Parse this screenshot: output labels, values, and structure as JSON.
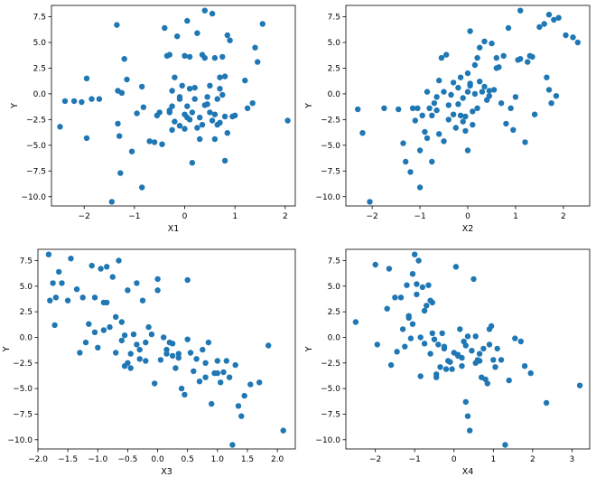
{
  "colors": {
    "marker": "#1f77b4"
  },
  "chart_data": [
    {
      "type": "scatter",
      "title": "",
      "xlabel": "X1",
      "ylabel": "Y",
      "xlim": [
        -2.65,
        2.2
      ],
      "ylim": [
        -10.9,
        8.6
      ],
      "xticks": [
        -2,
        -1,
        0,
        1,
        2
      ],
      "xtick_labels": [
        "−2",
        "−1",
        "0",
        "1",
        "2"
      ],
      "yticks": [
        -10,
        -7.5,
        -5,
        -2.5,
        0,
        2.5,
        5,
        7.5
      ],
      "ytick_labels": [
        "−10.0",
        "−7.5",
        "−5.0",
        "−2.5",
        "0.0",
        "2.5",
        "5.0",
        "7.5"
      ],
      "grid": false,
      "x": [
        -2.48,
        -2.38,
        -2.2,
        -2.05,
        -1.95,
        -1.95,
        -1.85,
        -1.7,
        -1.45,
        -1.35,
        -1.33,
        -1.33,
        -1.3,
        -1.28,
        -1.25,
        -1.2,
        -1.15,
        -1.05,
        -0.95,
        -0.85,
        -0.85,
        -0.82,
        -0.7,
        -0.6,
        -0.5,
        -0.45,
        -0.4,
        -0.35,
        -0.3,
        -0.3,
        -0.25,
        -0.25,
        -0.25,
        -0.2,
        -0.2,
        -0.15,
        -0.1,
        -0.1,
        -0.05,
        0.0,
        0.0,
        0.0,
        0.05,
        0.05,
        0.1,
        0.1,
        0.1,
        0.15,
        0.15,
        0.2,
        0.2,
        0.25,
        0.3,
        0.3,
        0.35,
        0.35,
        0.4,
        0.4,
        0.4,
        0.45,
        0.5,
        0.5,
        0.55,
        0.55,
        0.6,
        0.6,
        0.6,
        0.65,
        0.65,
        0.7,
        0.7,
        0.7,
        0.75,
        0.75,
        0.8,
        0.8,
        0.8,
        0.85,
        0.85,
        0.9,
        0.95,
        1.0,
        1.2,
        1.25,
        1.35,
        1.4,
        1.45,
        1.55,
        2.05,
        -0.55,
        -0.3,
        0.05,
        0.25,
        -0.1,
        0.45
      ],
      "y": [
        -3.2,
        -0.7,
        -0.7,
        -0.8,
        -4.3,
        1.5,
        -0.5,
        -0.5,
        -10.5,
        6.7,
        0.3,
        -2.9,
        -4.1,
        -7.7,
        0.1,
        3.4,
        1.4,
        -5.6,
        -1.9,
        0.7,
        -9.1,
        -1.3,
        -4.6,
        -4.7,
        -1.8,
        -4.9,
        6.4,
        3.7,
        3.8,
        -1.6,
        -3.5,
        -1.2,
        0.3,
        -2.7,
        1.6,
        5.6,
        -0.5,
        -3.1,
        0.8,
        3.7,
        -2.0,
        -3.4,
        7.1,
        -1.2,
        -2.5,
        3.6,
        0.5,
        -6.7,
        -1.8,
        -0.5,
        0.6,
        5.9,
        -4.4,
        -2.3,
        3.8,
        -3.0,
        -1.1,
        3.5,
        8.1,
        -0.3,
        0.8,
        -1.8,
        -2.6,
        7.8,
        -4.4,
        -2.0,
        3.5,
        -0.5,
        -3.0,
        1.6,
        0.5,
        -2.8,
        3.6,
        -0.1,
        -6.5,
        -2.2,
        1.7,
        -3.8,
        5.7,
        5.2,
        -2.2,
        -2.1,
        1.3,
        -1.4,
        -0.9,
        4.5,
        3.1,
        6.8,
        -2.6,
        -2.1,
        -1.8,
        -2.3,
        -3.3,
        -0.3,
        -1.0
      ]
    },
    {
      "type": "scatter",
      "title": "",
      "xlabel": "X2",
      "ylabel": "Y",
      "xlim": [
        -2.55,
        2.55
      ],
      "ylim": [
        -10.9,
        8.6
      ],
      "xticks": [
        -2,
        -1,
        0,
        1,
        2
      ],
      "xtick_labels": [
        "−2",
        "−1",
        "0",
        "1",
        "2"
      ],
      "yticks": [
        -10,
        -7.5,
        -5,
        -2.5,
        0,
        2.5,
        5,
        7.5
      ],
      "ytick_labels": [
        "−10.0",
        "−7.5",
        "−5.0",
        "−2.5",
        "0.0",
        "2.5",
        "5.0",
        "7.5"
      ],
      "grid": false,
      "x": [
        -2.3,
        -2.2,
        -2.05,
        -1.75,
        -1.45,
        -1.35,
        -1.3,
        -1.2,
        -1.15,
        -1.1,
        -1.05,
        -1.0,
        -1.0,
        -0.95,
        -0.9,
        -0.85,
        -0.85,
        -0.8,
        -0.75,
        -0.75,
        -0.7,
        -0.65,
        -0.6,
        -0.6,
        -0.55,
        -0.5,
        -0.5,
        -0.45,
        -0.4,
        -0.35,
        -0.3,
        -0.3,
        -0.25,
        -0.2,
        -0.2,
        -0.15,
        -0.1,
        -0.1,
        -0.05,
        -0.05,
        0.0,
        0.0,
        0.0,
        0.05,
        0.05,
        0.1,
        0.1,
        0.15,
        0.2,
        0.2,
        0.25,
        0.3,
        0.35,
        0.4,
        0.45,
        0.5,
        0.55,
        0.6,
        0.65,
        0.7,
        0.75,
        0.8,
        0.85,
        0.9,
        0.95,
        1.0,
        1.05,
        1.1,
        1.2,
        1.25,
        1.3,
        1.35,
        1.4,
        1.5,
        1.6,
        1.65,
        1.7,
        1.7,
        1.8,
        1.85,
        1.9,
        2.05,
        2.2,
        2.3,
        0.15,
        0.35,
        -0.15,
        0.6,
        0.25,
        -0.4,
        1.1,
        1.75,
        0.05,
        -0.65,
        0.45
      ],
      "y": [
        -1.5,
        -3.8,
        -10.5,
        -1.4,
        -1.5,
        -4.8,
        -6.6,
        -7.6,
        -1.4,
        -2.6,
        -1.4,
        -9.1,
        -5.5,
        -2.1,
        -3.7,
        0.2,
        -4.3,
        -1.4,
        -2.1,
        -6.6,
        -0.9,
        -0.3,
        -3.9,
        1.3,
        3.5,
        0.2,
        -4.6,
        3.8,
        -2.5,
        -0.1,
        -2.0,
        1.1,
        -3.3,
        0.6,
        -1.0,
        1.6,
        -2.7,
        -0.4,
        -2.2,
        -3.6,
        2.0,
        0.2,
        -5.5,
        6.1,
        0.8,
        -1.7,
        -3.0,
        2.8,
        -1.4,
        3.5,
        4.5,
        0.2,
        5.1,
        -0.6,
        0.3,
        4.9,
        0.4,
        3.5,
        2.6,
        -0.9,
        3.7,
        -2.9,
        6.4,
        -1.4,
        -3.5,
        -0.3,
        3.3,
        8.1,
        -4.7,
        3.1,
        3.7,
        3.6,
        -2.0,
        6.5,
        6.8,
        1.6,
        7.7,
        0.4,
        7.2,
        -0.2,
        7.4,
        5.7,
        5.5,
        5.0,
        0.0,
        0.7,
        -2.1,
        2.5,
        1.2,
        -1.1,
        3.4,
        -0.9,
        1.0,
        -1.6,
        -0.2
      ]
    },
    {
      "type": "scatter",
      "title": "",
      "xlabel": "X3",
      "ylabel": "Y",
      "xlim": [
        -2.0,
        2.3
      ],
      "ylim": [
        -10.9,
        8.6
      ],
      "xticks": [
        -2.0,
        -1.5,
        -1.0,
        -0.5,
        0.0,
        0.5,
        1.0,
        1.5,
        2.0
      ],
      "xtick_labels": [
        "−2.0",
        "−1.5",
        "−1.0",
        "−0.5",
        "0.0",
        "0.5",
        "1.0",
        "1.5",
        "2.0"
      ],
      "yticks": [
        -10,
        -7.5,
        -5,
        -2.5,
        0,
        2.5,
        5,
        7.5
      ],
      "ytick_labels": [
        "−10.0",
        "−7.5",
        "−5.0",
        "−2.5",
        "0.0",
        "2.5",
        "5.0",
        "7.5"
      ],
      "grid": false,
      "x": [
        -1.82,
        -1.8,
        -1.75,
        -1.72,
        -1.7,
        -1.65,
        -1.6,
        -1.5,
        -1.45,
        -1.35,
        -1.3,
        -1.25,
        -1.2,
        -1.15,
        -1.1,
        -1.05,
        -1.0,
        -0.95,
        -0.9,
        -0.85,
        -0.85,
        -0.8,
        -0.75,
        -0.7,
        -0.65,
        -0.6,
        -0.55,
        -0.5,
        -0.5,
        -0.45,
        -0.45,
        -0.4,
        -0.35,
        -0.3,
        -0.3,
        -0.25,
        -0.2,
        -0.15,
        -0.1,
        -0.05,
        0.0,
        0.05,
        0.1,
        0.15,
        0.2,
        0.25,
        0.3,
        0.35,
        0.4,
        0.45,
        0.5,
        0.55,
        0.6,
        0.65,
        0.7,
        0.75,
        0.8,
        0.85,
        0.9,
        0.95,
        1.0,
        1.05,
        1.1,
        1.15,
        1.2,
        1.25,
        1.3,
        1.35,
        1.4,
        1.45,
        1.55,
        1.7,
        1.85,
        2.1,
        -0.6,
        -0.35,
        0.0,
        0.35,
        0.8,
        -0.9,
        -1.05,
        0.15,
        0.5,
        -0.2,
        1.0,
        -0.55,
        -0.7,
        0.25
      ],
      "y": [
        8.1,
        3.6,
        5.3,
        1.2,
        3.9,
        6.4,
        5.3,
        3.6,
        7.7,
        4.7,
        -1.5,
        3.9,
        -0.5,
        1.3,
        7.0,
        3.9,
        -1.0,
        6.7,
        0.7,
        3.4,
        6.9,
        1.0,
        5.9,
        -1.5,
        7.5,
        1.5,
        0.2,
        4.6,
        -2.5,
        -1.6,
        -3.0,
        0.3,
        5.3,
        -1.2,
        -2.1,
        3.6,
        -0.5,
        1.0,
        0.3,
        -4.5,
        4.6,
        -2.2,
        0.0,
        -1.6,
        -0.5,
        -1.8,
        -3.0,
        -2.0,
        -5.0,
        -5.6,
        -0.2,
        -1.5,
        -3.3,
        -2.1,
        -4.3,
        -1.2,
        -3.9,
        -0.5,
        -6.5,
        -3.5,
        -3.5,
        -4.4,
        -3.4,
        -2.3,
        -3.9,
        -10.5,
        -2.7,
        -6.7,
        -7.7,
        -5.7,
        -4.6,
        -4.4,
        -0.8,
        -9.1,
        -0.3,
        -0.7,
        5.7,
        -1.6,
        -2.5,
        3.4,
        0.5,
        -1.2,
        5.6,
        -2.3,
        -2.3,
        -2.8,
        2.0,
        -0.6
      ]
    },
    {
      "type": "scatter",
      "title": "",
      "xlabel": "X4",
      "ylabel": "Y",
      "xlim": [
        -2.75,
        3.45
      ],
      "ylim": [
        -10.9,
        8.6
      ],
      "xticks": [
        -2,
        -1,
        0,
        1,
        2,
        3
      ],
      "xtick_labels": [
        "−2",
        "−1",
        "0",
        "1",
        "2",
        "3"
      ],
      "yticks": [
        -10,
        -7.5,
        -5,
        -2.5,
        0,
        2.5,
        5,
        7.5
      ],
      "ytick_labels": [
        "−10.0",
        "−7.5",
        "−5.0",
        "−2.5",
        "0.0",
        "2.5",
        "5.0",
        "7.5"
      ],
      "grid": false,
      "x": [
        -2.5,
        -2.0,
        -1.95,
        -1.7,
        -1.65,
        -1.6,
        -1.5,
        -1.45,
        -1.35,
        -1.3,
        -1.25,
        -1.2,
        -1.15,
        -1.1,
        -1.05,
        -1.0,
        -0.95,
        -0.9,
        -0.85,
        -0.8,
        -0.75,
        -0.7,
        -0.65,
        -0.6,
        -0.55,
        -0.5,
        -0.45,
        -0.4,
        -0.35,
        -0.3,
        -0.25,
        -0.2,
        -0.15,
        -0.1,
        -0.05,
        0.0,
        0.05,
        0.1,
        0.15,
        0.2,
        0.25,
        0.3,
        0.35,
        0.4,
        0.45,
        0.5,
        0.55,
        0.6,
        0.65,
        0.7,
        0.75,
        0.8,
        0.85,
        0.9,
        0.95,
        1.0,
        1.05,
        1.1,
        1.2,
        1.3,
        1.4,
        1.55,
        1.7,
        1.8,
        1.95,
        2.35,
        3.2,
        -0.95,
        -0.75,
        -0.55,
        -0.25,
        0.1,
        0.35,
        0.55,
        -1.05,
        -0.85,
        -0.45,
        0.2,
        0.65,
        0.9,
        -0.6,
        -1.15,
        0.3
      ],
      "y": [
        1.5,
        7.1,
        -0.7,
        2.8,
        6.7,
        -2.7,
        3.9,
        -1.4,
        3.9,
        0.8,
        -0.9,
        5.1,
        1.9,
        -0.1,
        6.2,
        8.1,
        4.2,
        7.5,
        -3.8,
        4.9,
        -0.6,
        3.1,
        5.1,
        -1.6,
        3.4,
        -0.2,
        -3.9,
        -0.7,
        -2.9,
        0.4,
        -1.1,
        -3.1,
        -2.3,
        -2.4,
        -3.1,
        -1.5,
        6.9,
        -1.8,
        0.8,
        -2.0,
        -0.4,
        -6.3,
        -7.7,
        -9.1,
        -1.3,
        5.7,
        0.1,
        -2.2,
        -2.3,
        -3.9,
        -1.1,
        -4.1,
        -4.5,
        0.8,
        1.1,
        -2.2,
        -2.9,
        -1.1,
        -2.2,
        -10.5,
        -4.2,
        -0.1,
        -0.4,
        -2.8,
        -3.5,
        -6.4,
        -4.7,
        5.2,
        2.6,
        0.4,
        -0.9,
        -1.7,
        0.1,
        -2.5,
        1.3,
        0.0,
        -3.6,
        -2.8,
        -1.6,
        -0.7,
        3.6,
        2.1,
        -0.8
      ]
    }
  ]
}
